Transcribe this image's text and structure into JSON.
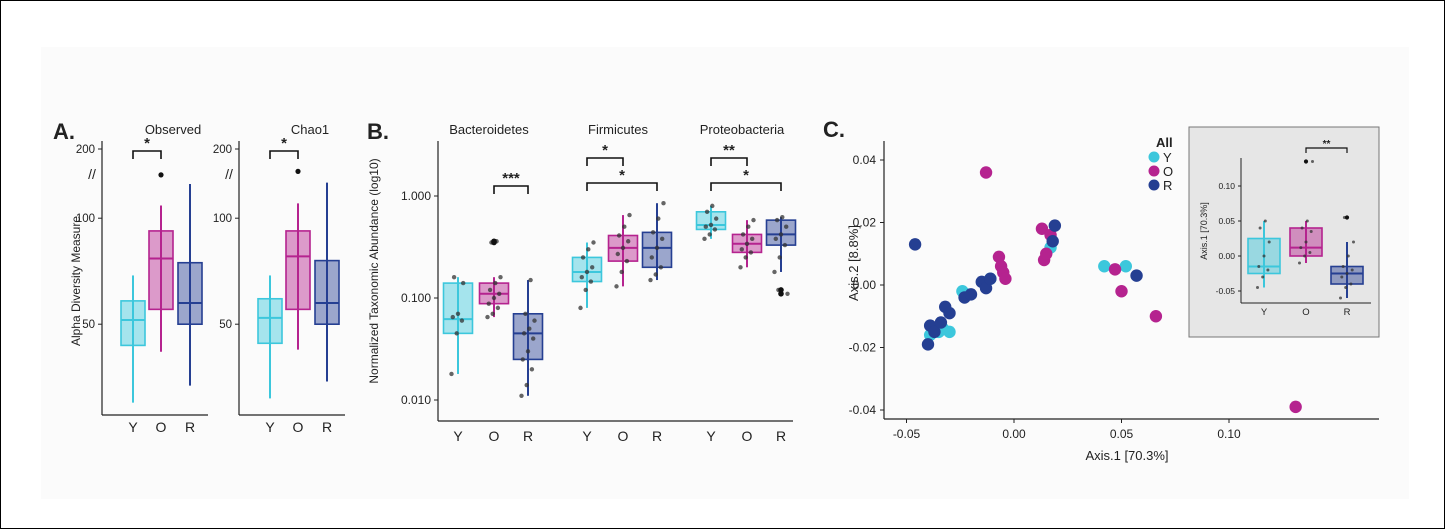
{
  "colors": {
    "Y": "#3cc7dc",
    "O": "#b5238f",
    "R": "#253f92",
    "inset_bg": "#e6e6e6"
  },
  "panels": {
    "a": "A.",
    "b": "B.",
    "c": "C."
  },
  "chart_data": [
    {
      "panel": "A.",
      "type": "boxplot",
      "ylabel": "Alpha Diversity Measure",
      "ylim": [
        10,
        210
      ],
      "yticks": [
        {
          "value": 50,
          "label": "50"
        },
        {
          "value": 100,
          "label": "100"
        },
        {
          "value": 200,
          "label": "200"
        }
      ],
      "axis_break": "//",
      "categories": [
        "Y",
        "O",
        "R"
      ],
      "facets": [
        {
          "title": "Observed",
          "boxes": [
            {
              "group": "Y",
              "whisker_low": 13,
              "q1": 40,
              "median": 52,
              "q3": 61,
              "whisker_high": 73,
              "outliers": []
            },
            {
              "group": "O",
              "whisker_low": 37,
              "q1": 57,
              "median": 81,
              "q3": 94,
              "whisker_high": 106,
              "outliers": [
                163
              ]
            },
            {
              "group": "R",
              "whisker_low": 21,
              "q1": 50,
              "median": 60,
              "q3": 79,
              "whisker_high": 150,
              "outliers": []
            }
          ],
          "significance": [
            {
              "from": "Y",
              "to": "O",
              "label": "*"
            }
          ]
        },
        {
          "title": "Chao1",
          "boxes": [
            {
              "group": "Y",
              "whisker_low": 15,
              "q1": 41,
              "median": 53,
              "q3": 62,
              "whisker_high": 73,
              "outliers": []
            },
            {
              "group": "O",
              "whisker_low": 38,
              "q1": 57,
              "median": 82,
              "q3": 94,
              "whisker_high": 107,
              "outliers": [
                168
              ]
            },
            {
              "group": "R",
              "whisker_low": 23,
              "q1": 50,
              "median": 60,
              "q3": 80,
              "whisker_high": 152,
              "outliers": []
            }
          ],
          "significance": [
            {
              "from": "Y",
              "to": "O",
              "label": "*"
            }
          ]
        }
      ]
    },
    {
      "panel": "B.",
      "type": "boxplot",
      "ylabel": "Normalized Taxonomic Abundance (log10)",
      "yscale": "log",
      "ylim": [
        0.0065,
        3.8
      ],
      "yticks": [
        {
          "value": 0.01,
          "label": "0.010"
        },
        {
          "value": 0.1,
          "label": "0.100"
        },
        {
          "value": 1,
          "label": "1.000"
        }
      ],
      "categories": [
        "Y",
        "O",
        "R"
      ],
      "facets": [
        {
          "title": "Bacteroidetes",
          "boxes": [
            {
              "group": "Y",
              "whisker_low": 0.018,
              "q1": 0.045,
              "median": 0.062,
              "q3": 0.14,
              "whisker_high": 0.16,
              "points": [
                0.018,
                0.045,
                0.06,
                0.065,
                0.07,
                0.14,
                0.16
              ]
            },
            {
              "group": "O",
              "whisker_low": 0.065,
              "q1": 0.088,
              "median": 0.11,
              "q3": 0.14,
              "whisker_high": 0.16,
              "outliers": [
                0.35,
                0.36
              ],
              "points": [
                0.065,
                0.07,
                0.08,
                0.088,
                0.1,
                0.11,
                0.12,
                0.14,
                0.16,
                0.35,
                0.36
              ]
            },
            {
              "group": "R",
              "whisker_low": 0.011,
              "q1": 0.025,
              "median": 0.045,
              "q3": 0.07,
              "whisker_high": 0.15,
              "points": [
                0.011,
                0.014,
                0.02,
                0.025,
                0.03,
                0.04,
                0.045,
                0.05,
                0.06,
                0.07,
                0.15
              ]
            }
          ],
          "significance": [
            {
              "from": "O",
              "to": "R",
              "label": "***"
            }
          ]
        },
        {
          "title": "Firmicutes",
          "boxes": [
            {
              "group": "Y",
              "whisker_low": 0.08,
              "q1": 0.145,
              "median": 0.18,
              "q3": 0.25,
              "whisker_high": 0.35,
              "points": [
                0.08,
                0.12,
                0.145,
                0.16,
                0.18,
                0.2,
                0.25,
                0.3,
                0.35
              ]
            },
            {
              "group": "O",
              "whisker_low": 0.13,
              "q1": 0.23,
              "median": 0.31,
              "q3": 0.41,
              "whisker_high": 0.65,
              "points": [
                0.13,
                0.18,
                0.23,
                0.27,
                0.31,
                0.36,
                0.41,
                0.5,
                0.65
              ]
            },
            {
              "group": "R",
              "whisker_low": 0.15,
              "q1": 0.2,
              "median": 0.31,
              "q3": 0.44,
              "whisker_high": 0.85,
              "points": [
                0.15,
                0.17,
                0.2,
                0.25,
                0.31,
                0.38,
                0.44,
                0.6,
                0.85
              ]
            }
          ],
          "significance": [
            {
              "from": "Y",
              "to": "O",
              "label": "*"
            },
            {
              "from": "Y",
              "to": "R",
              "label": "*"
            }
          ]
        },
        {
          "title": "Proteobacteria",
          "boxes": [
            {
              "group": "Y",
              "whisker_low": 0.38,
              "q1": 0.47,
              "median": 0.52,
              "q3": 0.7,
              "whisker_high": 0.8,
              "points": [
                0.38,
                0.42,
                0.47,
                0.5,
                0.52,
                0.6,
                0.7,
                0.8
              ]
            },
            {
              "group": "O",
              "whisker_low": 0.2,
              "q1": 0.28,
              "median": 0.34,
              "q3": 0.42,
              "whisker_high": 0.58,
              "points": [
                0.2,
                0.25,
                0.28,
                0.3,
                0.34,
                0.38,
                0.42,
                0.5,
                0.58
              ]
            },
            {
              "group": "R",
              "whisker_low": 0.18,
              "q1": 0.33,
              "median": 0.42,
              "q3": 0.58,
              "whisker_high": 0.62,
              "outliers": [
                0.11,
                0.12
              ],
              "points": [
                0.18,
                0.25,
                0.33,
                0.38,
                0.42,
                0.5,
                0.58,
                0.62,
                0.11,
                0.12
              ]
            }
          ],
          "significance": [
            {
              "from": "Y",
              "to": "O",
              "label": "**"
            },
            {
              "from": "Y",
              "to": "R",
              "label": "*"
            }
          ]
        }
      ]
    },
    {
      "panel": "C.",
      "type": "scatter",
      "xlabel": "Axis.1   [70.3%]",
      "ylabel": "Axis.2   [8.8%]",
      "xlim": [
        -0.055,
        0.17
      ],
      "ylim": [
        -0.045,
        0.048
      ],
      "xticks": [
        {
          "value": -0.05,
          "label": "-0.05"
        },
        {
          "value": 0,
          "label": "0.00"
        },
        {
          "value": 0.05,
          "label": "0.05"
        },
        {
          "value": 0.1,
          "label": "0.10"
        }
      ],
      "yticks": [
        {
          "value": -0.04,
          "label": "-0.04"
        },
        {
          "value": -0.02,
          "label": "-0.02"
        },
        {
          "value": 0,
          "label": "0.00"
        },
        {
          "value": 0.02,
          "label": "0.02"
        },
        {
          "value": 0.04,
          "label": "0.04"
        }
      ],
      "legend": {
        "title": "All",
        "position": "top-right",
        "entries": [
          "Y",
          "O",
          "R"
        ]
      },
      "series": [
        {
          "group": "Y",
          "points": [
            [
              -0.039,
              -0.016
            ],
            [
              -0.035,
              -0.015
            ],
            [
              -0.03,
              -0.015
            ],
            [
              -0.024,
              -0.002
            ],
            [
              -0.022,
              -0.003
            ],
            [
              -0.011,
              0.002
            ],
            [
              0.017,
              0.012
            ],
            [
              0.042,
              0.006
            ],
            [
              0.052,
              0.006
            ],
            [
              -0.033,
              -0.014
            ]
          ]
        },
        {
          "group": "O",
          "points": [
            [
              -0.013,
              0.036
            ],
            [
              -0.007,
              0.009
            ],
            [
              -0.006,
              0.006
            ],
            [
              -0.005,
              0.004
            ],
            [
              -0.004,
              0.002
            ],
            [
              0.013,
              0.018
            ],
            [
              0.014,
              0.008
            ],
            [
              0.015,
              0.01
            ],
            [
              0.017,
              0.016
            ],
            [
              0.047,
              0.005
            ],
            [
              0.05,
              -0.002
            ],
            [
              0.066,
              -0.01
            ],
            [
              0.131,
              -0.039
            ]
          ]
        },
        {
          "group": "R",
          "points": [
            [
              -0.046,
              0.013
            ],
            [
              -0.04,
              -0.019
            ],
            [
              -0.039,
              -0.013
            ],
            [
              -0.037,
              -0.015
            ],
            [
              -0.034,
              -0.012
            ],
            [
              -0.032,
              -0.007
            ],
            [
              -0.03,
              -0.009
            ],
            [
              -0.023,
              -0.004
            ],
            [
              -0.02,
              -0.003
            ],
            [
              -0.015,
              0.001
            ],
            [
              -0.013,
              -0.001
            ],
            [
              -0.011,
              0.002
            ],
            [
              0.018,
              0.014
            ],
            [
              0.019,
              0.019
            ],
            [
              0.057,
              0.003
            ]
          ]
        }
      ],
      "inset": {
        "type": "boxplot",
        "ylabel": "Axis.1 [70.3%]",
        "ylim": [
          -0.065,
          0.155
        ],
        "yticks": [
          {
            "value": -0.05,
            "label": "-0.05"
          },
          {
            "value": 0,
            "label": "0.00"
          },
          {
            "value": 0.05,
            "label": "0.05"
          },
          {
            "value": 0.1,
            "label": "0.10"
          }
        ],
        "categories": [
          "Y",
          "O",
          "R"
        ],
        "boxes": [
          {
            "group": "Y",
            "whisker_low": -0.045,
            "q1": -0.025,
            "median": -0.015,
            "q3": 0.025,
            "whisker_high": 0.05,
            "points": [
              -0.045,
              -0.03,
              -0.02,
              -0.015,
              0.0,
              0.02,
              0.04,
              0.05
            ]
          },
          {
            "group": "O",
            "whisker_low": -0.01,
            "q1": 0.0,
            "median": 0.012,
            "q3": 0.04,
            "whisker_high": 0.05,
            "outliers": [
              0.135
            ],
            "points": [
              -0.01,
              0.0,
              0.005,
              0.012,
              0.02,
              0.035,
              0.04,
              0.05,
              0.135
            ]
          },
          {
            "group": "R",
            "whisker_low": -0.06,
            "q1": -0.04,
            "median": -0.025,
            "q3": -0.015,
            "whisker_high": 0.02,
            "outliers": [
              0.055
            ],
            "points": [
              -0.06,
              -0.045,
              -0.04,
              -0.03,
              -0.025,
              -0.02,
              -0.015,
              0.0,
              0.02,
              0.055
            ]
          }
        ],
        "significance": [
          {
            "from": "O",
            "to": "R",
            "label": "**"
          }
        ]
      }
    }
  ]
}
